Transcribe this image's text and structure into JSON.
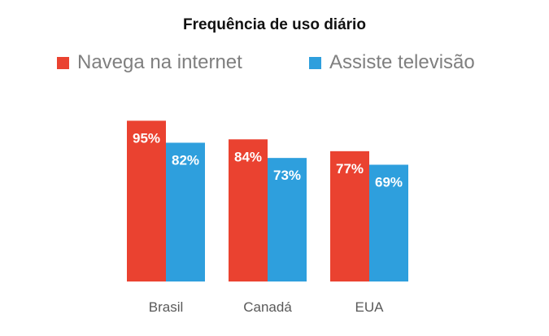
{
  "chart_data": {
    "type": "bar",
    "title": "Frequência de uso diário",
    "categories": [
      "Brasil",
      "Canadá",
      "EUA"
    ],
    "series": [
      {
        "name": "Navega na internet",
        "values": [
          95,
          84,
          77
        ],
        "labels": [
          "95%",
          "84%",
          "77%"
        ],
        "color": "#ea4230"
      },
      {
        "name": "Assiste televisão",
        "values": [
          82,
          73,
          69
        ],
        "labels": [
          "82%",
          "73%",
          "69%"
        ],
        "color": "#2e9fdd"
      }
    ],
    "ylim": [
      0,
      100
    ],
    "grid": false,
    "legend": "top"
  }
}
